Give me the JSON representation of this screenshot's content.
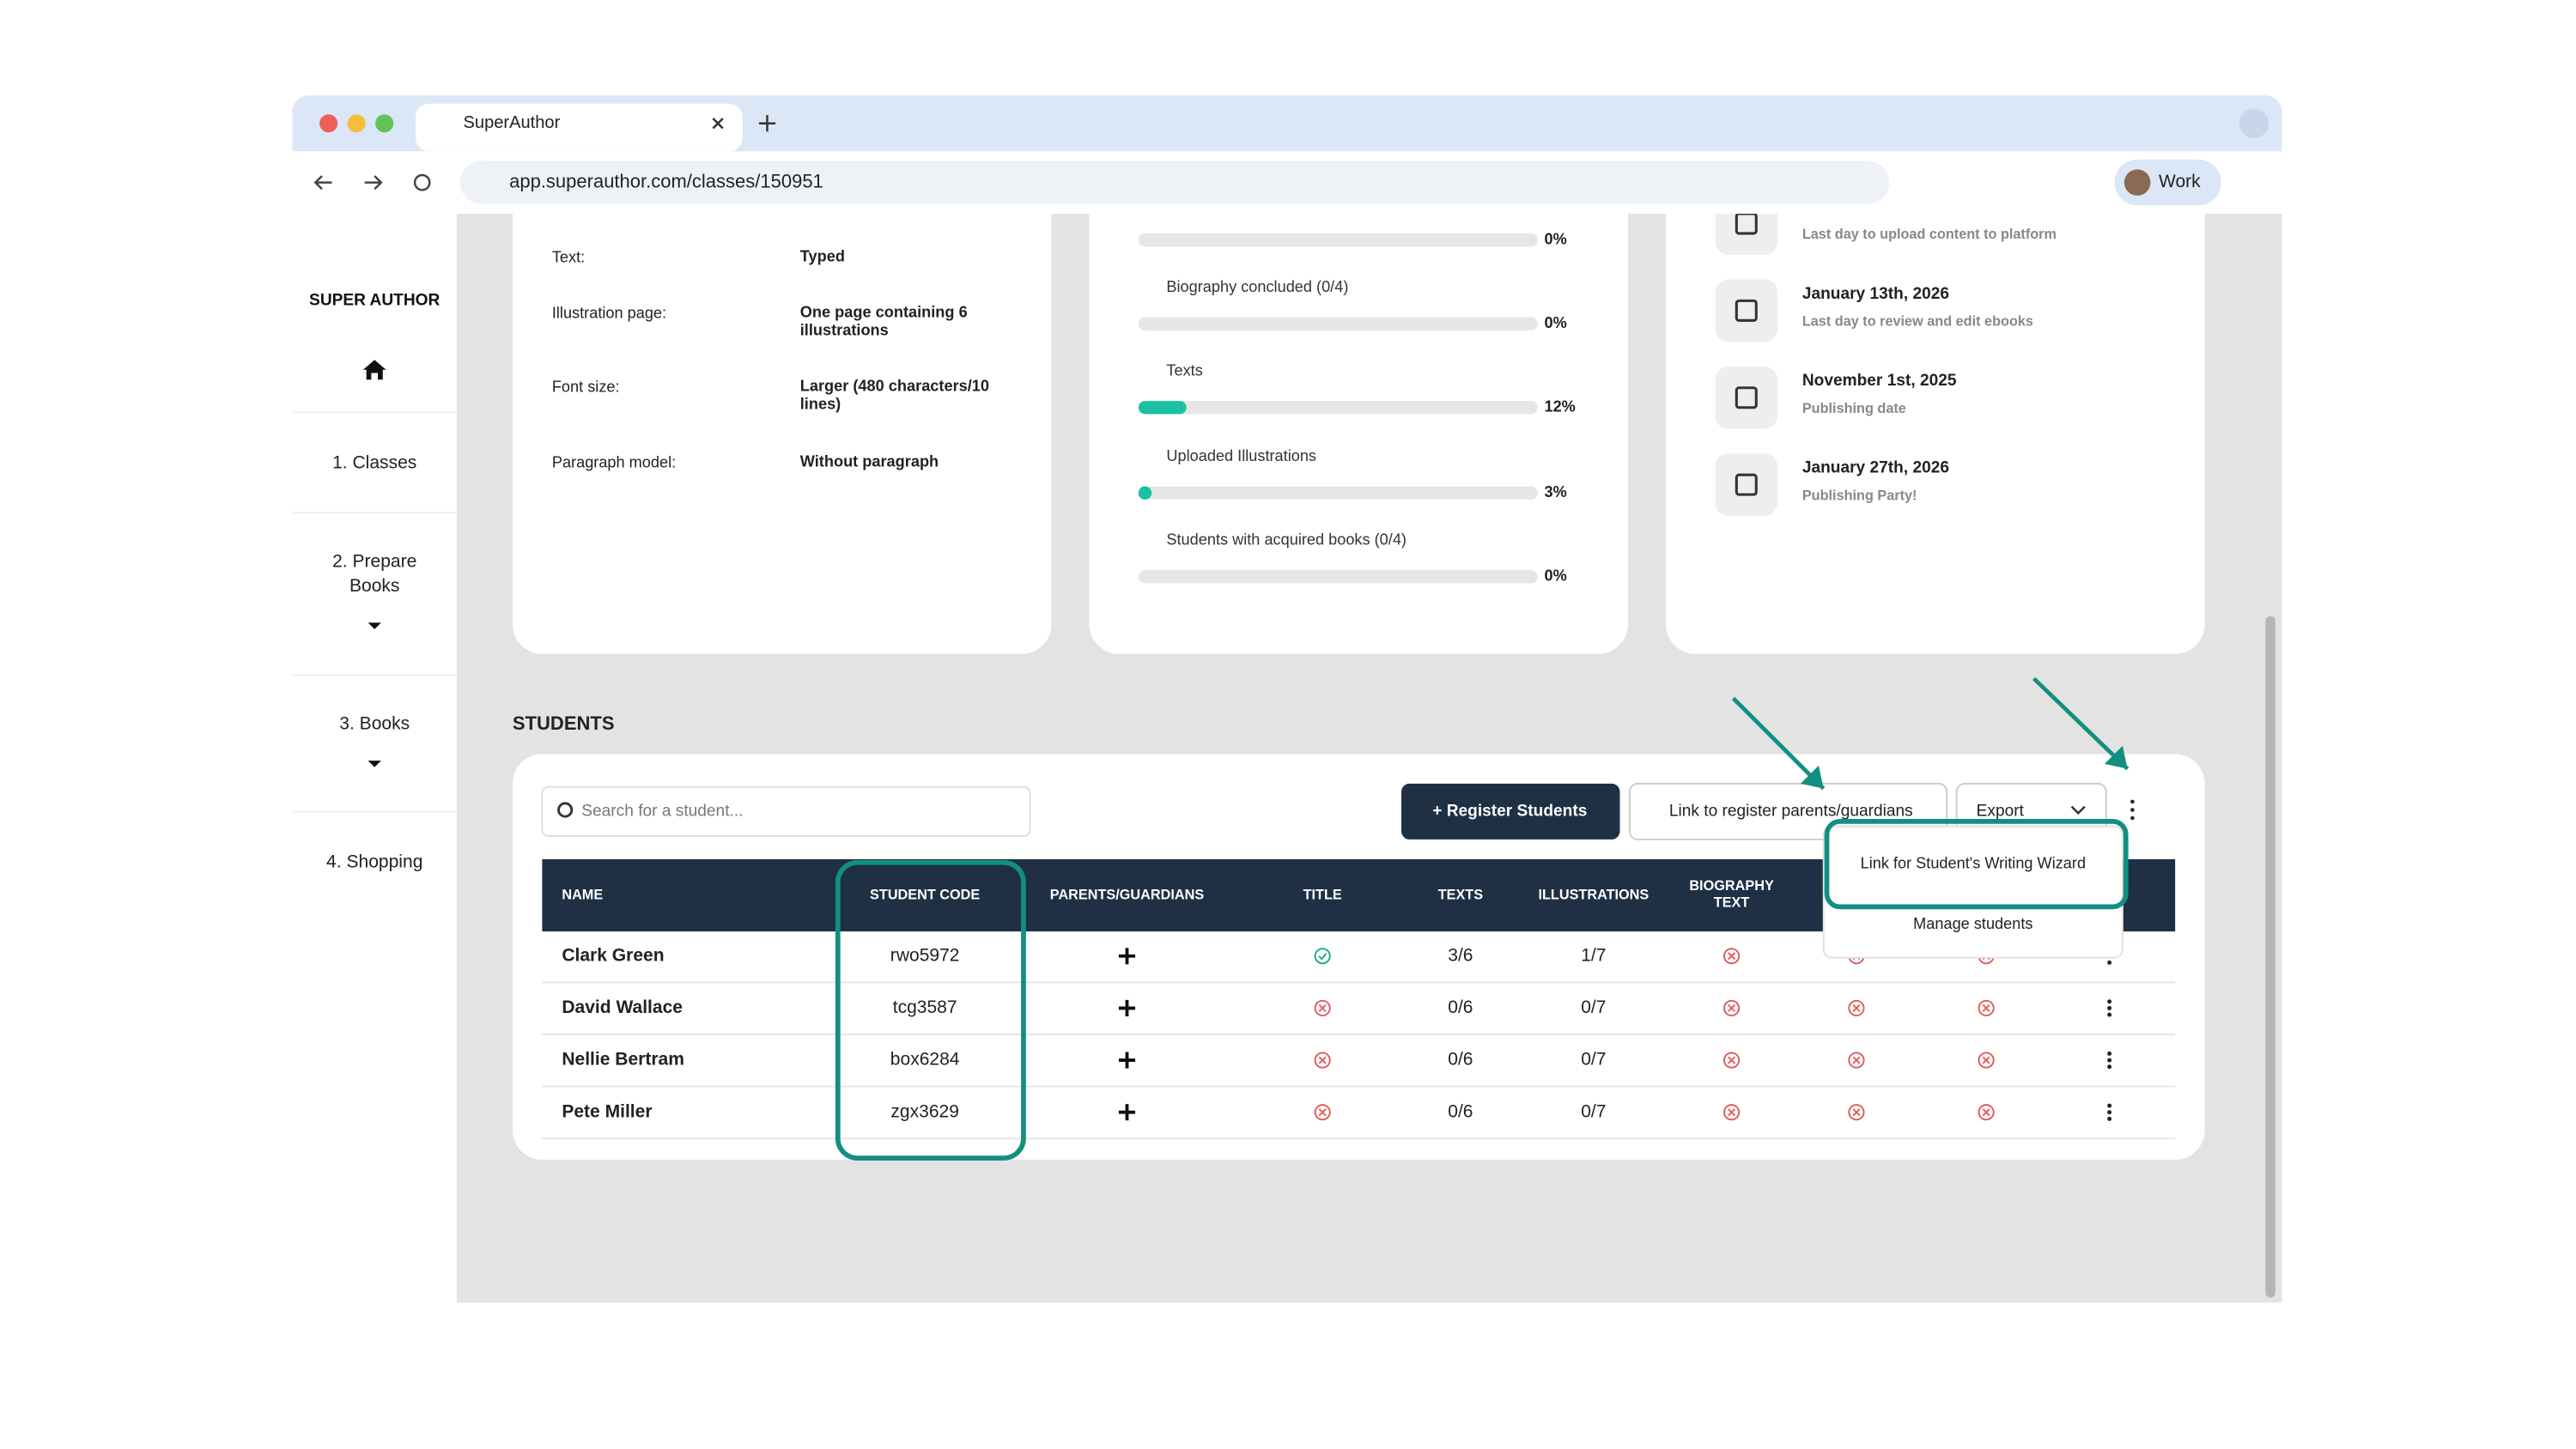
{
  "browser": {
    "tab_title": "SuperAuthor",
    "url": "app.superauthor.com/classes/150951",
    "profile": "Work"
  },
  "sidebar": {
    "logo": "SUPER AUTHOR",
    "nav": [
      "1. Classes",
      "2. Prepare Books",
      "3. Books",
      "4. Shopping"
    ]
  },
  "settings": [
    {
      "label": "Text:",
      "value": "Typed"
    },
    {
      "label": "Illustration page:",
      "value": "One page containing 6 illustrations"
    },
    {
      "label": "Font size:",
      "value": "Larger (480 characters/10 lines)"
    },
    {
      "label": "Paragraph model:",
      "value": "Without paragraph"
    }
  ],
  "progress": [
    {
      "value": 0,
      "value_label": "0%"
    },
    {
      "label": "Biography concluded (0/4)",
      "value": 0,
      "value_label": "0%"
    },
    {
      "label": "Texts",
      "value": 12,
      "value_label": "12%"
    },
    {
      "label": "Uploaded Illustrations",
      "value": 3,
      "value_label": "3%"
    },
    {
      "label": "Students with acquired books (0/4)",
      "value": 0,
      "value_label": "0%"
    }
  ],
  "dates": [
    {
      "note": "Last day to upload content to platform"
    },
    {
      "date": "January 13th, 2026",
      "note": "Last day to review and edit ebooks"
    },
    {
      "date": "November 1st, 2025",
      "note": "Publishing date"
    },
    {
      "date": "January 27th, 2026",
      "note": "Publishing Party!"
    }
  ],
  "students": {
    "heading": "STUDENTS",
    "search_placeholder": "Search for a student...",
    "buttons": [
      "+ Register Students",
      "Link to register parents/guardians",
      "Export"
    ],
    "menu": [
      "Link for Student's Writing Wizard",
      "Manage students"
    ],
    "columns": [
      "NAME",
      "STUDENT CODE",
      "PARENTS/GUARDIANS",
      "TITLE",
      "TEXTS",
      "ILLUSTRATIONS",
      "BIOGRAPHY TEXT"
    ],
    "rows": [
      {
        "name": "Clark Green",
        "code": "rwo5972",
        "title": true,
        "texts": "3/6",
        "illustrations": "1/7",
        "statuses": [
          false,
          false,
          false
        ]
      },
      {
        "name": "David Wallace",
        "code": "tcg3587",
        "title": false,
        "texts": "0/6",
        "illustrations": "0/7",
        "statuses": [
          false,
          false,
          false
        ]
      },
      {
        "name": "Nellie Bertram",
        "code": "box6284",
        "title": false,
        "texts": "0/6",
        "illustrations": "0/7",
        "statuses": [
          false,
          false,
          false
        ]
      },
      {
        "name": "Pete Miller",
        "code": "zgx3629",
        "title": false,
        "texts": "0/6",
        "illustrations": "0/7",
        "statuses": [
          false,
          false,
          false
        ]
      }
    ]
  }
}
